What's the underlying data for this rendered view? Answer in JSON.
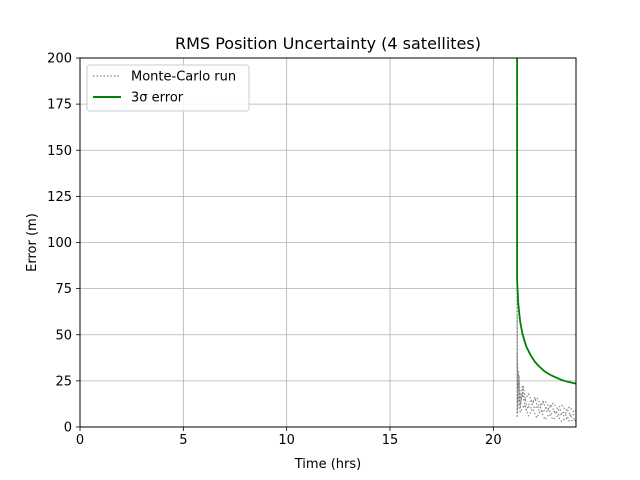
{
  "chart_data": {
    "type": "line",
    "title": "RMS Position Uncertainty (4 satellites)",
    "xlabel": "Time (hrs)",
    "ylabel": "Error (m)",
    "xlim": [
      0,
      24
    ],
    "ylim": [
      0,
      200
    ],
    "xticks": [
      0,
      5,
      10,
      15,
      20
    ],
    "yticks": [
      0,
      25,
      50,
      75,
      100,
      125,
      150,
      175,
      200
    ],
    "grid": true,
    "legend_position": "top-left",
    "series": [
      {
        "name": "Monte-Carlo run",
        "style": "dotted",
        "color": "#808080",
        "x": [
          21.15,
          21.15,
          21.17,
          21.2,
          21.25,
          21.3,
          21.4,
          21.5,
          21.7,
          21.9,
          22.1,
          22.3,
          22.5,
          22.7,
          22.9,
          23.1,
          23.3,
          23.5,
          23.7,
          23.9,
          24.0
        ],
        "values": [
          200,
          5,
          35,
          20,
          28,
          15,
          22,
          14,
          18,
          13,
          16,
          12,
          14,
          11,
          13,
          10,
          12,
          9,
          11,
          8,
          9
        ]
      },
      {
        "name": "",
        "style": "dotted",
        "color": "#808080",
        "x": [
          21.15,
          21.17,
          21.2,
          21.3,
          21.4,
          21.6,
          21.8,
          22.0,
          22.2,
          22.4,
          22.6,
          22.8,
          23.0,
          23.2,
          23.4,
          23.6,
          23.8,
          24.0
        ],
        "values": [
          60,
          8,
          25,
          12,
          18,
          9,
          14,
          10,
          12,
          8,
          11,
          7,
          9,
          6,
          8,
          5,
          7,
          6
        ]
      },
      {
        "name": "",
        "style": "dotted",
        "color": "#808080",
        "x": [
          21.15,
          21.18,
          21.22,
          21.3,
          21.45,
          21.6,
          21.8,
          22.0,
          22.2,
          22.4,
          22.6,
          22.8,
          23.0,
          23.2,
          23.4,
          23.6,
          23.8,
          24.0
        ],
        "values": [
          40,
          15,
          30,
          10,
          22,
          12,
          10,
          16,
          9,
          14,
          8,
          12,
          7,
          10,
          6,
          9,
          5,
          4
        ]
      },
      {
        "name": "",
        "style": "dotted",
        "color": "#808080",
        "x": [
          21.15,
          21.17,
          21.2,
          21.3,
          21.5,
          21.7,
          21.9,
          22.1,
          22.3,
          22.5,
          22.7,
          22.9,
          23.1,
          23.3,
          23.5,
          23.7,
          23.9,
          24.0
        ],
        "values": [
          80,
          10,
          18,
          8,
          12,
          6,
          10,
          5,
          9,
          4,
          7,
          4,
          6,
          3,
          5,
          3,
          4,
          3
        ]
      },
      {
        "name": "3σ error",
        "style": "solid",
        "color": "#008000",
        "x": [
          21.15,
          21.15,
          21.17,
          21.2,
          21.25,
          21.3,
          21.4,
          21.5,
          21.6,
          21.8,
          22.0,
          22.2,
          22.5,
          22.8,
          23.0,
          23.3,
          23.6,
          24.0
        ],
        "values": [
          200,
          80,
          75,
          68,
          62,
          57,
          51,
          47,
          43.5,
          39,
          35.5,
          33,
          30,
          28,
          27,
          25.5,
          24.5,
          23.5
        ]
      }
    ]
  }
}
